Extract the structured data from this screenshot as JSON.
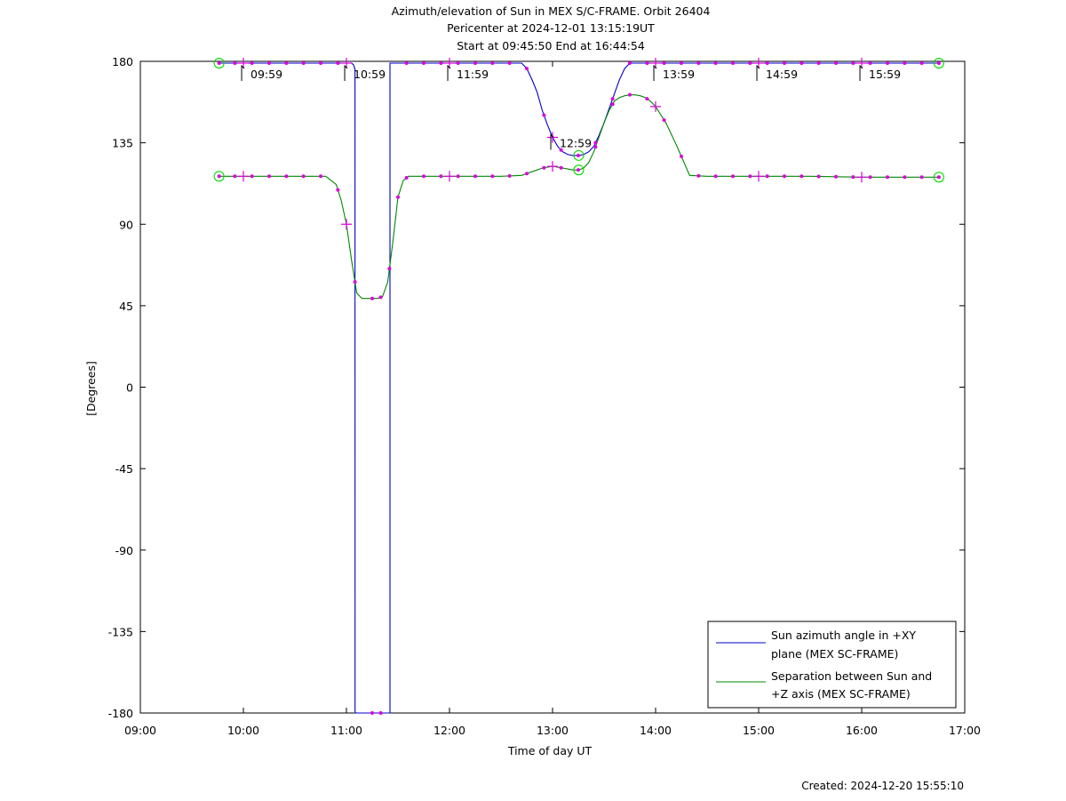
{
  "chart_data": {
    "type": "line",
    "title": [
      "Azimuth/elevation of Sun in MEX S/C-FRAME.  Orbit 26404",
      "Pericenter at 2024-12-01 13:15:19UT",
      "Start at 09:45:50 End at 16:44:54"
    ],
    "xlabel": "Time of day UT",
    "ylabel": "[Degrees]",
    "xlim": [
      9.0,
      17.0
    ],
    "ylim": [
      -180,
      180
    ],
    "xticks": [
      9,
      10,
      11,
      12,
      13,
      14,
      15,
      16,
      17
    ],
    "xtick_labels": [
      "09:00",
      "10:00",
      "11:00",
      "12:00",
      "13:00",
      "14:00",
      "15:00",
      "16:00",
      "17:00"
    ],
    "yticks": [
      180,
      135,
      90,
      45,
      0,
      -45,
      -90,
      -135,
      -180
    ],
    "ytick_labels": [
      "180",
      "135",
      "90",
      "45",
      "0",
      "-45",
      "-90",
      "-135",
      "-180"
    ],
    "grid": false,
    "legend_position": "bottom-right",
    "series": [
      {
        "name": [
          "Sun azimuth angle in +XY",
          "plane (MEX SC-FRAME)"
        ],
        "color": "#0000cc",
        "x": [
          9.764,
          10.0,
          10.5,
          11.0,
          11.05,
          11.07,
          11.08,
          11.083,
          11.0835,
          11.09,
          11.2,
          11.3,
          11.4,
          11.42,
          11.422,
          11.4225,
          11.43,
          11.45,
          11.5,
          11.7,
          12.0,
          12.3,
          12.5,
          12.7,
          12.75,
          12.8,
          12.85,
          12.9,
          12.95,
          13.0,
          13.05,
          13.1,
          13.15,
          13.2,
          13.254,
          13.3,
          13.35,
          13.4,
          13.45,
          13.5,
          13.55,
          13.6,
          13.65,
          13.7,
          13.75,
          13.8,
          14.0,
          14.5,
          15.0,
          15.5,
          16.0,
          16.5,
          16.749
        ],
        "y": [
          179,
          179,
          179,
          179,
          179,
          178,
          176,
          176,
          -179,
          -180,
          -180,
          -180,
          -180,
          -180,
          -180,
          179,
          179,
          179,
          179,
          179,
          179,
          179,
          179,
          179,
          176,
          170,
          163,
          153,
          145,
          138,
          133,
          130,
          128.5,
          128,
          128,
          128.5,
          130,
          133,
          139,
          146,
          154,
          162,
          170,
          176,
          179,
          179,
          179,
          179,
          179,
          179,
          179,
          179,
          179
        ]
      },
      {
        "name": [
          "Separation between Sun and",
          "+Z axis (MEX SC-FRAME)"
        ],
        "color": "#008800",
        "x": [
          9.764,
          10.0,
          10.5,
          10.8,
          10.9,
          10.95,
          11.0,
          11.05,
          11.1,
          11.15,
          11.2,
          11.3,
          11.35,
          11.4,
          11.45,
          11.5,
          11.55,
          11.6,
          11.7,
          12.0,
          12.5,
          12.7,
          12.8,
          12.9,
          13.0,
          13.1,
          13.2,
          13.254,
          13.3,
          13.35,
          13.4,
          13.45,
          13.5,
          13.55,
          13.6,
          13.65,
          13.7,
          13.75,
          13.8,
          13.85,
          13.9,
          13.95,
          14.0,
          14.1,
          14.2,
          14.3,
          14.33,
          14.5,
          15.0,
          15.5,
          16.0,
          16.5,
          16.749
        ],
        "y": [
          116.5,
          116.5,
          116.5,
          116.5,
          112,
          103,
          90,
          70,
          52,
          49,
          49,
          49,
          50,
          58,
          80,
          105,
          114,
          116.5,
          116.5,
          116.5,
          116.5,
          117,
          119,
          121,
          122,
          121,
          120,
          120,
          121,
          124,
          130,
          138,
          146,
          153,
          158,
          160,
          161,
          161.5,
          161.5,
          161,
          160,
          158,
          155,
          146,
          134,
          121,
          117,
          116.5,
          116.5,
          116.5,
          116,
          116,
          116
        ]
      }
    ],
    "markers": {
      "azimuth_dots_x": [
        9.764,
        9.917,
        10.083,
        10.25,
        10.417,
        10.583,
        10.75,
        10.917,
        11.25,
        11.333,
        11.583,
        11.75,
        11.917,
        12.083,
        12.25,
        12.417,
        12.583,
        12.75,
        12.917,
        13.083,
        13.25,
        13.417,
        13.583,
        13.75,
        13.917,
        14.083,
        14.25,
        14.417,
        14.583,
        14.75,
        14.917,
        15.083,
        15.25,
        15.417,
        15.583,
        15.75,
        15.917,
        16.083,
        16.25,
        16.417,
        16.583,
        16.749
      ],
      "separation_dots_x": [
        9.764,
        9.917,
        10.083,
        10.25,
        10.417,
        10.583,
        10.75,
        10.917,
        11.083,
        11.25,
        11.333,
        11.417,
        11.5,
        11.583,
        11.75,
        11.917,
        12.083,
        12.25,
        12.417,
        12.583,
        12.75,
        12.917,
        13.083,
        13.25,
        13.417,
        13.583,
        13.75,
        13.917,
        14.083,
        14.25,
        14.417,
        14.583,
        14.75,
        14.917,
        15.083,
        15.25,
        15.417,
        15.583,
        15.75,
        15.917,
        16.083,
        16.25,
        16.417,
        16.583,
        16.749
      ],
      "azimuth_plus_x": [
        10.0,
        11.0,
        12.0,
        13.0,
        14.0,
        15.0,
        16.0
      ],
      "separation_plus_x": [
        10.0,
        11.0,
        12.0,
        13.0,
        14.0,
        15.0,
        16.0
      ],
      "circle_x": [
        9.764,
        13.254,
        16.749
      ],
      "dot_color": "#dd00dd",
      "circle_color": "#00dd00"
    },
    "annotations": [
      {
        "label": "09:59",
        "x": 9.983,
        "y": 179
      },
      {
        "label": "10:59",
        "x": 10.983,
        "y": 179
      },
      {
        "label": "11:59",
        "x": 11.983,
        "y": 179
      },
      {
        "label": "12:59",
        "x": 12.983,
        "y": 141
      },
      {
        "label": "13:59",
        "x": 13.983,
        "y": 179
      },
      {
        "label": "14:59",
        "x": 14.983,
        "y": 179
      },
      {
        "label": "15:59",
        "x": 15.983,
        "y": 179
      }
    ]
  },
  "footer": {
    "created": "Created: 2024-12-20 15:55:10"
  }
}
